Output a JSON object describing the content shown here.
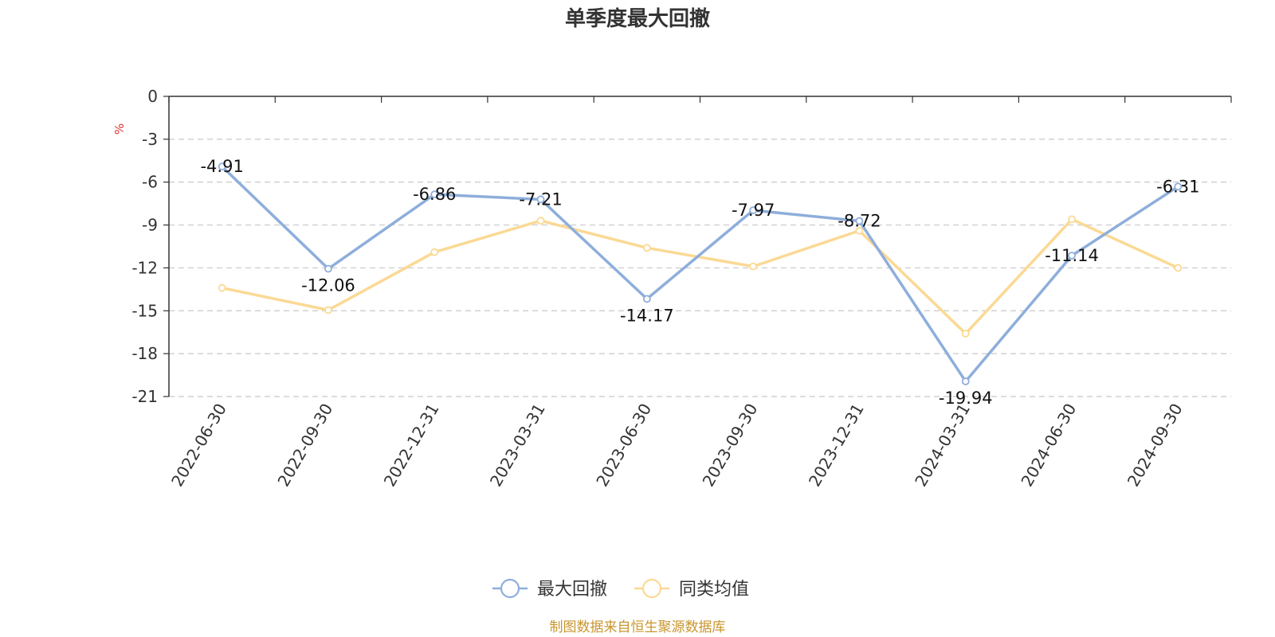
{
  "chart_data": {
    "type": "line",
    "title": "单季度最大回撤",
    "ylabel": "%",
    "categories": [
      "2022-06-30",
      "2022-09-30",
      "2022-12-31",
      "2023-03-31",
      "2023-06-30",
      "2023-09-30",
      "2023-12-31",
      "2024-03-31",
      "2024-06-30",
      "2024-09-30"
    ],
    "series": [
      {
        "name": "最大回撤",
        "color": "#8eaedb",
        "values": [
          -4.91,
          -12.06,
          -6.86,
          -7.21,
          -14.17,
          -7.97,
          -8.72,
          -19.94,
          -11.14,
          -6.31
        ],
        "labels": [
          "-4.91",
          "-12.06",
          "-6.86",
          "-7.21",
          "-14.17",
          "-7.97",
          "-8.72",
          "-19.94",
          "-11.14",
          "-6.31"
        ]
      },
      {
        "name": "同类均值",
        "color": "#fbd994",
        "values": [
          -13.4,
          -14.95,
          -10.9,
          -8.7,
          -10.6,
          -11.9,
          -9.4,
          -16.6,
          -8.6,
          -12.0
        ]
      }
    ],
    "ylim": [
      -21,
      0
    ],
    "yticks": [
      "0",
      "-3",
      "-6",
      "-9",
      "-12",
      "-15",
      "-18",
      "-21"
    ],
    "grid": true,
    "legend_position": "bottom-center"
  },
  "source_note": "制图数据来自恒生聚源数据库",
  "colors": {
    "unit": "#e03030",
    "source": "#c9962e",
    "axis": "#333333",
    "grid": "#c8c8c8"
  }
}
